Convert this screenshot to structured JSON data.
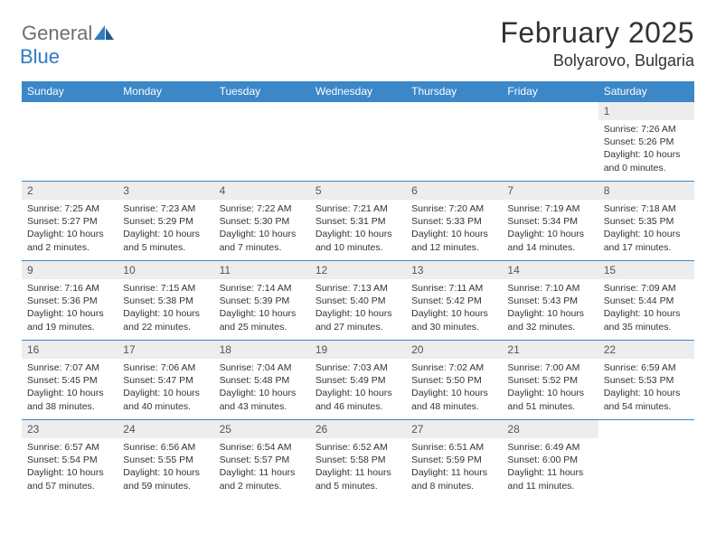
{
  "logo": {
    "word1": "General",
    "word2": "Blue"
  },
  "title": "February 2025",
  "location": "Bolyarovo, Bulgaria",
  "colors": {
    "header_bg": "#3b87c8",
    "header_text": "#ffffff",
    "daynum_bg": "#ededed",
    "daynum_text": "#555555",
    "body_text": "#333333",
    "border": "#3b87c8",
    "logo_gray": "#6e6e6e",
    "logo_blue": "#2f7dc2"
  },
  "weekdays": [
    "Sunday",
    "Monday",
    "Tuesday",
    "Wednesday",
    "Thursday",
    "Friday",
    "Saturday"
  ],
  "weeks": [
    [
      null,
      null,
      null,
      null,
      null,
      null,
      {
        "n": "1",
        "sunrise": "7:26 AM",
        "sunset": "5:26 PM",
        "daylight": "10 hours and 0 minutes."
      }
    ],
    [
      {
        "n": "2",
        "sunrise": "7:25 AM",
        "sunset": "5:27 PM",
        "daylight": "10 hours and 2 minutes."
      },
      {
        "n": "3",
        "sunrise": "7:23 AM",
        "sunset": "5:29 PM",
        "daylight": "10 hours and 5 minutes."
      },
      {
        "n": "4",
        "sunrise": "7:22 AM",
        "sunset": "5:30 PM",
        "daylight": "10 hours and 7 minutes."
      },
      {
        "n": "5",
        "sunrise": "7:21 AM",
        "sunset": "5:31 PM",
        "daylight": "10 hours and 10 minutes."
      },
      {
        "n": "6",
        "sunrise": "7:20 AM",
        "sunset": "5:33 PM",
        "daylight": "10 hours and 12 minutes."
      },
      {
        "n": "7",
        "sunrise": "7:19 AM",
        "sunset": "5:34 PM",
        "daylight": "10 hours and 14 minutes."
      },
      {
        "n": "8",
        "sunrise": "7:18 AM",
        "sunset": "5:35 PM",
        "daylight": "10 hours and 17 minutes."
      }
    ],
    [
      {
        "n": "9",
        "sunrise": "7:16 AM",
        "sunset": "5:36 PM",
        "daylight": "10 hours and 19 minutes."
      },
      {
        "n": "10",
        "sunrise": "7:15 AM",
        "sunset": "5:38 PM",
        "daylight": "10 hours and 22 minutes."
      },
      {
        "n": "11",
        "sunrise": "7:14 AM",
        "sunset": "5:39 PM",
        "daylight": "10 hours and 25 minutes."
      },
      {
        "n": "12",
        "sunrise": "7:13 AM",
        "sunset": "5:40 PM",
        "daylight": "10 hours and 27 minutes."
      },
      {
        "n": "13",
        "sunrise": "7:11 AM",
        "sunset": "5:42 PM",
        "daylight": "10 hours and 30 minutes."
      },
      {
        "n": "14",
        "sunrise": "7:10 AM",
        "sunset": "5:43 PM",
        "daylight": "10 hours and 32 minutes."
      },
      {
        "n": "15",
        "sunrise": "7:09 AM",
        "sunset": "5:44 PM",
        "daylight": "10 hours and 35 minutes."
      }
    ],
    [
      {
        "n": "16",
        "sunrise": "7:07 AM",
        "sunset": "5:45 PM",
        "daylight": "10 hours and 38 minutes."
      },
      {
        "n": "17",
        "sunrise": "7:06 AM",
        "sunset": "5:47 PM",
        "daylight": "10 hours and 40 minutes."
      },
      {
        "n": "18",
        "sunrise": "7:04 AM",
        "sunset": "5:48 PM",
        "daylight": "10 hours and 43 minutes."
      },
      {
        "n": "19",
        "sunrise": "7:03 AM",
        "sunset": "5:49 PM",
        "daylight": "10 hours and 46 minutes."
      },
      {
        "n": "20",
        "sunrise": "7:02 AM",
        "sunset": "5:50 PM",
        "daylight": "10 hours and 48 minutes."
      },
      {
        "n": "21",
        "sunrise": "7:00 AM",
        "sunset": "5:52 PM",
        "daylight": "10 hours and 51 minutes."
      },
      {
        "n": "22",
        "sunrise": "6:59 AM",
        "sunset": "5:53 PM",
        "daylight": "10 hours and 54 minutes."
      }
    ],
    [
      {
        "n": "23",
        "sunrise": "6:57 AM",
        "sunset": "5:54 PM",
        "daylight": "10 hours and 57 minutes."
      },
      {
        "n": "24",
        "sunrise": "6:56 AM",
        "sunset": "5:55 PM",
        "daylight": "10 hours and 59 minutes."
      },
      {
        "n": "25",
        "sunrise": "6:54 AM",
        "sunset": "5:57 PM",
        "daylight": "11 hours and 2 minutes."
      },
      {
        "n": "26",
        "sunrise": "6:52 AM",
        "sunset": "5:58 PM",
        "daylight": "11 hours and 5 minutes."
      },
      {
        "n": "27",
        "sunrise": "6:51 AM",
        "sunset": "5:59 PM",
        "daylight": "11 hours and 8 minutes."
      },
      {
        "n": "28",
        "sunrise": "6:49 AM",
        "sunset": "6:00 PM",
        "daylight": "11 hours and 11 minutes."
      },
      null
    ]
  ],
  "labels": {
    "sunrise": "Sunrise:",
    "sunset": "Sunset:",
    "daylight": "Daylight:"
  }
}
